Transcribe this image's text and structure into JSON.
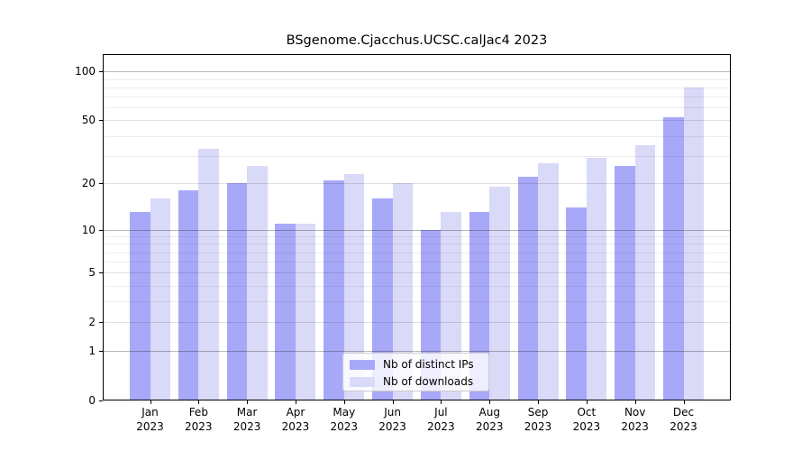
{
  "chart_data": {
    "type": "bar",
    "title": "BSgenome.Cjacchus.UCSC.calJac4 2023",
    "year_label": "2023",
    "categories": [
      "Jan",
      "Feb",
      "Mar",
      "Apr",
      "May",
      "Jun",
      "Jul",
      "Aug",
      "Sep",
      "Oct",
      "Nov",
      "Dec"
    ],
    "series": [
      {
        "name": "Nb of distinct IPs",
        "color": "#a8a8f8",
        "values": [
          13,
          18,
          20,
          11,
          21,
          16,
          10,
          13,
          22,
          14,
          26,
          52
        ]
      },
      {
        "name": "Nb of downloads",
        "color": "#d9d9f8",
        "values": [
          16,
          33,
          26,
          11,
          23,
          20,
          13,
          19,
          27,
          29,
          35,
          80
        ]
      }
    ],
    "yscale": "log1p",
    "ylim": [
      0,
      128
    ],
    "yticks": [
      0,
      1,
      2,
      5,
      10,
      20,
      50,
      100
    ],
    "minor_yticks": [
      3,
      4,
      6,
      7,
      8,
      9,
      30,
      40,
      60,
      70,
      80,
      90
    ],
    "decade_yticks": [
      1,
      10,
      100
    ],
    "grid": true,
    "legend_position": "lower-center",
    "colors": {
      "bar_ips": "#a8a8f8",
      "bar_downloads": "#d9d9f8",
      "grid_minor": "rgba(0,0,0,0.07)",
      "grid_major": "rgba(0,0,0,0.12)",
      "grid_decade": "rgba(0,0,0,0.28)",
      "spine": "#000000",
      "legend_border": "#cccccc"
    }
  }
}
